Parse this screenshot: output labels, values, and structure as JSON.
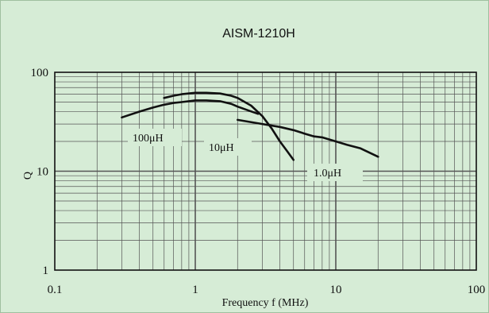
{
  "chart_data": {
    "type": "line",
    "title": "AISM-1210H",
    "xlabel": "Frequency  f  (MHz)",
    "ylabel": "Q",
    "xscale": "log",
    "yscale": "log",
    "xlim": [
      0.1,
      100
    ],
    "ylim": [
      1,
      100
    ],
    "grid": true,
    "legend": "none (inline labels)",
    "x_tick_labels": [
      "0.1",
      "1",
      "10",
      "100"
    ],
    "y_tick_labels": [
      "1",
      "10",
      "100"
    ],
    "colors": {
      "background": "#d6ecd6",
      "grid": "#555555",
      "line": "#111111"
    },
    "series": [
      {
        "name": "100μH",
        "x": [
          0.3,
          0.4,
          0.5,
          0.6,
          0.7,
          0.8,
          1.0,
          1.2,
          1.5,
          1.8,
          2.0,
          2.4,
          2.8
        ],
        "y": [
          35,
          40,
          44,
          47,
          49,
          50,
          52,
          52,
          51,
          48,
          45,
          41,
          38
        ]
      },
      {
        "name": "10μH",
        "x": [
          0.6,
          0.7,
          0.8,
          1.0,
          1.2,
          1.5,
          1.8,
          2.0,
          2.5,
          3.0,
          3.5,
          4.0,
          4.5,
          5.0
        ],
        "y": [
          55,
          58,
          60,
          62,
          62,
          61,
          58,
          55,
          46,
          36,
          27,
          20,
          16,
          13
        ]
      },
      {
        "name": "1.0μH",
        "x": [
          2,
          3,
          4,
          5,
          6,
          7,
          8,
          10,
          12,
          15,
          20
        ],
        "y": [
          33,
          30,
          28,
          26,
          24,
          22.5,
          22,
          20,
          18.5,
          17,
          14
        ]
      }
    ]
  }
}
